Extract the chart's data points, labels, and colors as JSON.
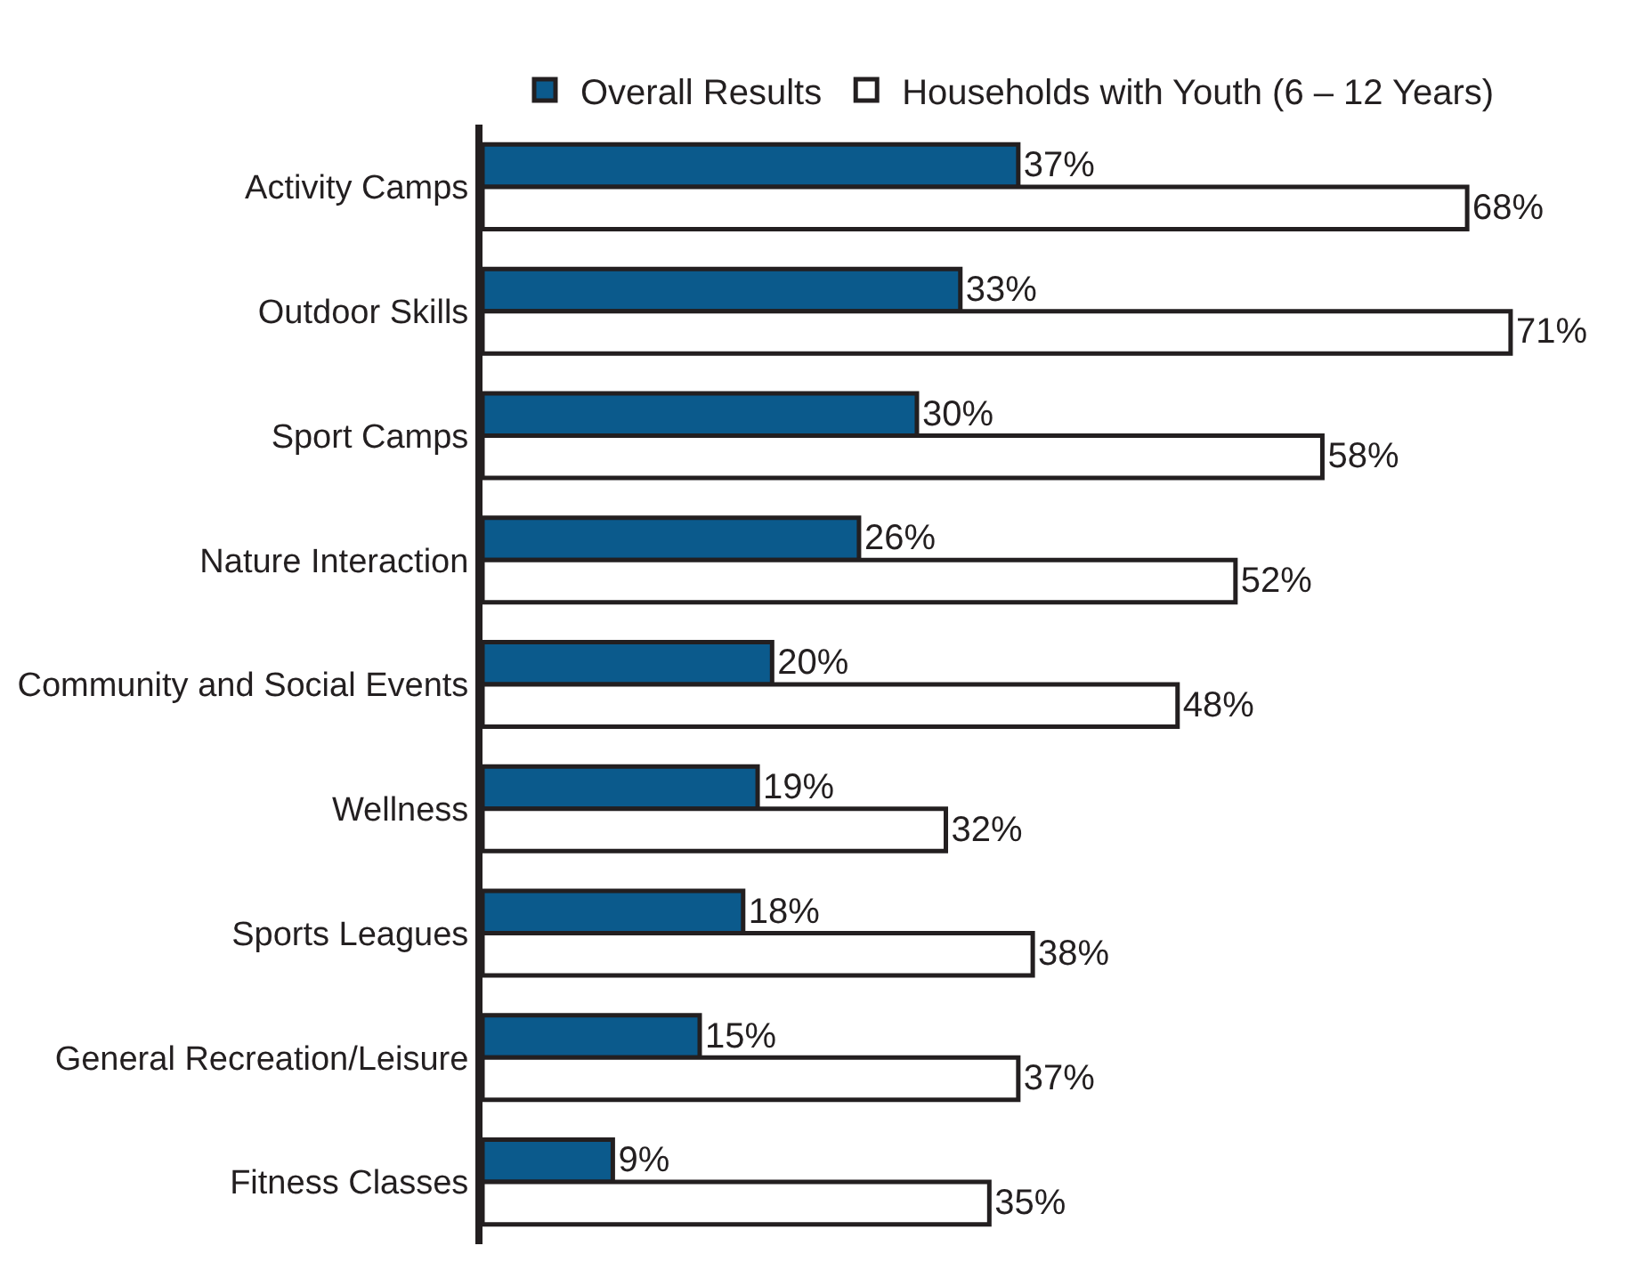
{
  "chart_data": {
    "type": "bar",
    "orientation": "horizontal",
    "legend": "top",
    "categories": [
      "Activity Camps",
      "Outdoor Skills",
      "Sport Camps",
      "Nature Interaction",
      "Community and Social Events",
      "Wellness",
      "Sports Leagues",
      "General Recreation/Leisure",
      "Fitness Classes"
    ],
    "series": [
      {
        "name": "Overall Results",
        "color": "#0b5a8c",
        "values": [
          37,
          33,
          30,
          26,
          20,
          19,
          18,
          15,
          9
        ],
        "value_labels": [
          "37%",
          "33%",
          "30%",
          "26%",
          "20%",
          "19%",
          "18%",
          "15%",
          "9%"
        ]
      },
      {
        "name": "Households with Youth (6 – 12 Years)",
        "color": "#ffffff",
        "values": [
          68,
          71,
          58,
          52,
          48,
          32,
          38,
          37,
          35
        ],
        "value_labels": [
          "68%",
          "71%",
          "58%",
          "52%",
          "48%",
          "32%",
          "38%",
          "37%",
          "35%"
        ]
      }
    ]
  }
}
